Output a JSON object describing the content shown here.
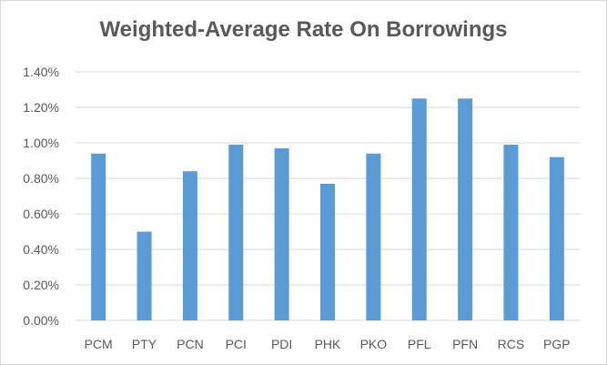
{
  "chart_data": {
    "type": "bar",
    "title": "Weighted-Average Rate On Borrowings",
    "categories": [
      "PCM",
      "PTY",
      "PCN",
      "PCI",
      "PDI",
      "PHK",
      "PKO",
      "PFL",
      "PFN",
      "RCS",
      "PGP"
    ],
    "values": [
      0.94,
      0.5,
      0.84,
      0.99,
      0.97,
      0.77,
      0.94,
      1.25,
      1.25,
      0.99,
      0.92
    ],
    "ylim": [
      0,
      1.4
    ],
    "yticks": [
      "0.00%",
      "0.20%",
      "0.40%",
      "0.60%",
      "0.80%",
      "1.00%",
      "1.20%",
      "1.40%"
    ],
    "ytick_values": [
      0,
      0.2,
      0.4,
      0.6,
      0.8,
      1.0,
      1.2,
      1.4
    ],
    "xlabel": "",
    "ylabel": "",
    "grid": true,
    "legend": "none",
    "colors": {
      "bar": "#5b9bd5",
      "grid": "#d9d9d9",
      "text": "#595959"
    }
  }
}
